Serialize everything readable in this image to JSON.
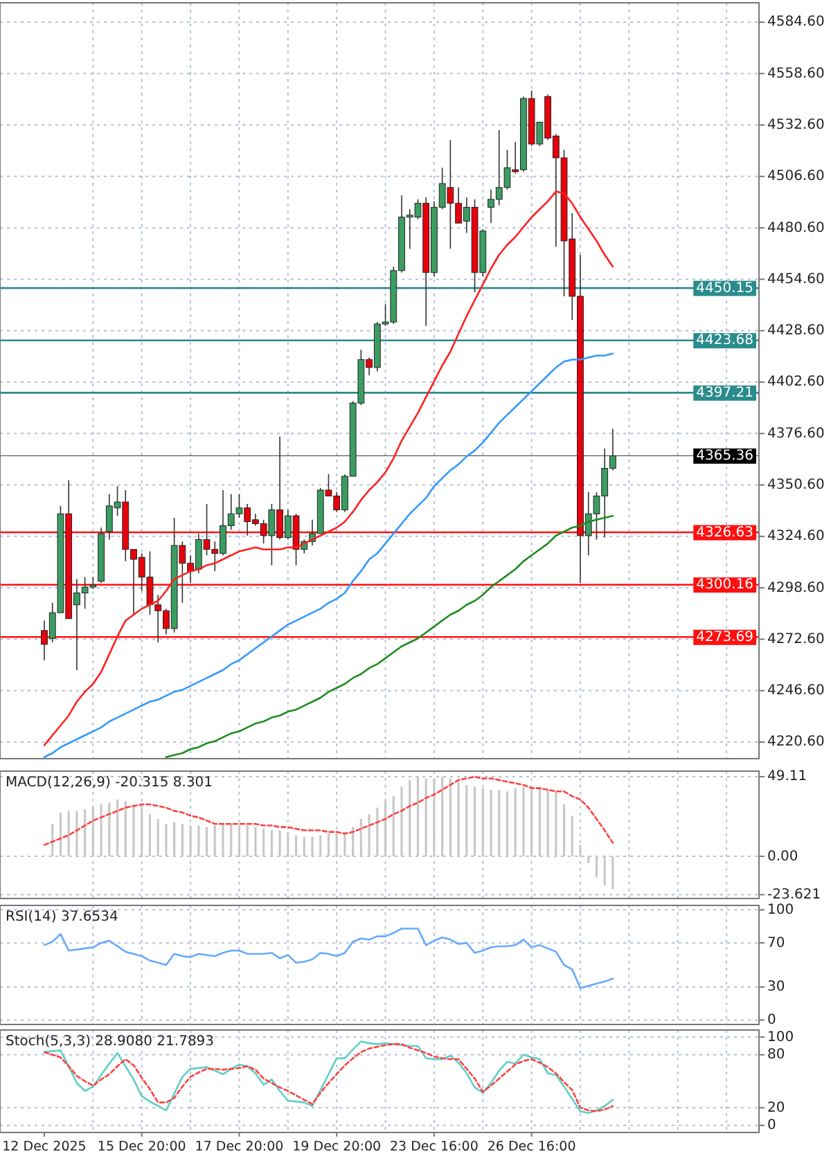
{
  "chart_data": [
    {
      "type": "candlestick",
      "categories": [
        null,
        null,
        null,
        null,
        null,
        null,
        null,
        null,
        null,
        null,
        null,
        null,
        null,
        null,
        null,
        null,
        null,
        null,
        null,
        null,
        null,
        null,
        null,
        null,
        null,
        null,
        null,
        null,
        null,
        null,
        null,
        null,
        null,
        null,
        null,
        null,
        null,
        null,
        null,
        null,
        null,
        null,
        null,
        null,
        null,
        null,
        null,
        null,
        null,
        null,
        null,
        null,
        null,
        null,
        null,
        null,
        null,
        null,
        null,
        null,
        null,
        null,
        null,
        null,
        null,
        null,
        null,
        null,
        null,
        null,
        null
      ],
      "ohlc": [
        [
          4277,
          4282,
          4262,
          4270
        ],
        [
          4273,
          4291,
          4271,
          4286
        ],
        [
          4286,
          4340,
          4286,
          4336
        ],
        [
          4336,
          4353,
          4283,
          4283
        ],
        [
          4290,
          4303,
          4257,
          4296
        ],
        [
          4296,
          4304,
          4288,
          4299
        ],
        [
          4299,
          4304,
          4298,
          4300
        ],
        [
          4302,
          4329,
          4301,
          4326
        ],
        [
          4327,
          4346,
          4323,
          4340
        ],
        [
          4339,
          4350,
          4335,
          4342
        ],
        [
          4342,
          4348,
          4312,
          4318
        ],
        [
          4318,
          4318,
          4285,
          4313
        ],
        [
          4314,
          4316,
          4297,
          4304
        ],
        [
          4304,
          4317,
          4285,
          4290
        ],
        [
          4290,
          4295,
          4271,
          4287
        ],
        [
          4287,
          4288,
          4275,
          4278
        ],
        [
          4278,
          4334,
          4276,
          4320
        ],
        [
          4320,
          4322,
          4291,
          4311
        ],
        [
          4311,
          4315,
          4301,
          4307
        ],
        [
          4308,
          4326,
          4306,
          4323
        ],
        [
          4323,
          4341,
          4315,
          4318
        ],
        [
          4318,
          4322,
          4307,
          4316
        ],
        [
          4316,
          4348,
          4315,
          4330
        ],
        [
          4330,
          4346,
          4328,
          4336
        ],
        [
          4336,
          4346,
          4334,
          4339
        ],
        [
          4339,
          4341,
          4325,
          4332
        ],
        [
          4333,
          4336,
          4330,
          4331
        ],
        [
          4331,
          4333,
          4321,
          4325
        ],
        [
          4325,
          4341,
          4310,
          4338
        ],
        [
          4338,
          4375,
          4323,
          4324
        ],
        [
          4324,
          4338,
          4323,
          4335
        ],
        [
          4335,
          4336,
          4310,
          4318
        ],
        [
          4318,
          4323,
          4316,
          4322
        ],
        [
          4322,
          4333,
          4320,
          4326
        ],
        [
          4326,
          4349,
          4326,
          4348
        ],
        [
          4348,
          4356,
          4345,
          4345
        ],
        [
          4345,
          4347,
          4337,
          4338
        ],
        [
          4338,
          4356,
          4337,
          4355
        ],
        [
          4355,
          4393,
          4355,
          4392
        ],
        [
          4392,
          4419,
          4391,
          4414
        ],
        [
          4414,
          4415,
          4406,
          4410
        ],
        [
          4410,
          4433,
          4408,
          4432
        ],
        [
          4432,
          4442,
          4431,
          4433
        ],
        [
          4433,
          4461,
          4432,
          4459
        ],
        [
          4459,
          4497,
          4458,
          4486
        ],
        [
          4486,
          4490,
          4470,
          4487
        ],
        [
          4486,
          4495,
          4485,
          4493
        ],
        [
          4493,
          4496,
          4431,
          4458
        ],
        [
          4458,
          4494,
          4456,
          4491
        ],
        [
          4491,
          4511,
          4490,
          4503
        ],
        [
          4501,
          4525,
          4470,
          4493
        ],
        [
          4493,
          4501,
          4483,
          4483
        ],
        [
          4484,
          4496,
          4478,
          4491
        ],
        [
          4491,
          4495,
          4448,
          4458
        ],
        [
          4458,
          4480,
          4456,
          4479
        ],
        [
          4491,
          4500,
          4483,
          4495
        ],
        [
          4495,
          4530,
          4492,
          4501
        ],
        [
          4501,
          4520,
          4500,
          4511
        ],
        [
          4510,
          4524,
          4508,
          4509
        ],
        [
          4510,
          4547,
          4509,
          4546
        ],
        [
          4546,
          4550,
          4522,
          4523
        ],
        [
          4523,
          4534,
          4522,
          4534
        ],
        [
          4547,
          4548,
          4525,
          4526
        ],
        [
          4527,
          4528,
          4471,
          4516
        ],
        [
          4516,
          4520,
          4446,
          4474
        ],
        [
          4475,
          4488,
          4434,
          4446
        ],
        [
          4446,
          4467,
          4301,
          4325
        ],
        [
          4325,
          4347,
          4315,
          4336
        ],
        [
          4336,
          4347,
          4323,
          4345
        ],
        [
          4345,
          4369,
          4324,
          4359
        ],
        [
          4359,
          4379,
          4358,
          4365.36
        ]
      ],
      "series": [
        {
          "type": "line",
          "color": "#ff2020",
          "values": [
            4219,
            4224,
            4229,
            4234,
            4241,
            4246,
            4250,
            4256,
            4265,
            4274,
            4282,
            4285,
            4288,
            4290,
            4292,
            4297,
            4303,
            4305,
            4307,
            4308,
            4310,
            4311,
            4313,
            4315,
            4317,
            4318,
            4319,
            4318,
            4318,
            4318,
            4319,
            4319,
            4321,
            4323,
            4325,
            4327,
            4329,
            4332,
            4337,
            4343,
            4348,
            4352,
            4357,
            4364,
            4373,
            4380,
            4387,
            4395,
            4403,
            4411,
            4418,
            4427,
            4436,
            4444,
            4452,
            4460,
            4467,
            4472,
            4476,
            4481,
            4486,
            4490,
            4494,
            4499,
            4498,
            4493,
            4486,
            4480,
            4474,
            4467,
            4461
          ]
        },
        {
          "type": "line",
          "color": "#3399ff",
          "values": [
            4213,
            4215,
            4218,
            4220,
            4222,
            4224,
            4226,
            4228,
            4231,
            4233,
            4235,
            4237,
            4239,
            4241,
            4242,
            4244,
            4246,
            4247,
            4249,
            4251,
            4253,
            4255,
            4257,
            4260,
            4262,
            4265,
            4268,
            4271,
            4274,
            4277,
            4280,
            4282,
            4284,
            4286,
            4288,
            4291,
            4293,
            4296,
            4302,
            4307,
            4313,
            4316,
            4321,
            4326,
            4331,
            4336,
            4340,
            4344,
            4350,
            4354,
            4358,
            4361,
            4365,
            4368,
            4372,
            4377,
            4382,
            4386,
            4390,
            4394,
            4398,
            4402,
            4406,
            4410,
            4413,
            4414,
            4414,
            4415,
            4416,
            4416,
            4417
          ]
        },
        {
          "type": "line",
          "color": "#1e8c1e",
          "values": [
            null,
            null,
            null,
            null,
            null,
            null,
            null,
            null,
            null,
            null,
            null,
            null,
            null,
            null,
            null,
            4213,
            4214,
            4215,
            4217,
            4218,
            4220,
            4221,
            4223,
            4225,
            4226,
            4228,
            4230,
            4231,
            4233,
            4234,
            4236,
            4237,
            4239,
            4241,
            4243,
            4246,
            4248,
            4250,
            4253,
            4255,
            4258,
            4260,
            4263,
            4266,
            4269,
            4271,
            4273,
            4276,
            4279,
            4282,
            4285,
            4287,
            4290,
            4292,
            4295,
            4299,
            4302,
            4305,
            4308,
            4312,
            4315,
            4318,
            4321,
            4325,
            4327,
            4329,
            4330,
            4332,
            4333,
            4334,
            4335
          ]
        }
      ],
      "ref_lines": [
        {
          "axis": "y",
          "value": 4450.15,
          "label": "4450.15",
          "color": "#2a8c8c"
        },
        {
          "axis": "y",
          "value": 4423.68,
          "label": "4423.68",
          "color": "#2a8c8c"
        },
        {
          "axis": "y",
          "value": 4397.21,
          "label": "4397.21",
          "color": "#2a8c8c"
        },
        {
          "axis": "y",
          "value": 4365.36,
          "label": "4365.36",
          "color": "#000000"
        },
        {
          "axis": "y",
          "value": 4326.63,
          "label": "4326.63",
          "color": "#ff1010"
        },
        {
          "axis": "y",
          "value": 4300.16,
          "label": "4300.16",
          "color": "#ff1010"
        },
        {
          "axis": "y",
          "value": 4273.69,
          "label": "4273.69",
          "color": "#ff1010"
        }
      ],
      "ylim": [
        4212.2,
        4594.4
      ],
      "yticks": [
        {
          "value": 4220.6,
          "label": "4220.60"
        },
        {
          "value": 4246.6,
          "label": "4246.60"
        },
        {
          "value": 4272.6,
          "label": "4272.60"
        },
        {
          "value": 4298.6,
          "label": "4298.60"
        },
        {
          "value": 4324.6,
          "label": "4324.60"
        },
        {
          "value": 4350.6,
          "label": "4350.60"
        },
        {
          "value": 4376.6,
          "label": "4376.60"
        },
        {
          "value": 4402.6,
          "label": "4402.60"
        },
        {
          "value": 4428.6,
          "label": "4428.60"
        },
        {
          "value": 4454.6,
          "label": "4454.60"
        },
        {
          "value": 4480.6,
          "label": "4480.60"
        },
        {
          "value": 4506.6,
          "label": "4506.60"
        },
        {
          "value": 4532.6,
          "label": "4532.60"
        },
        {
          "value": 4558.6,
          "label": "4558.60"
        },
        {
          "value": 4584.6,
          "label": "4584.60"
        }
      ],
      "grid": true,
      "tick_labels": "y"
    },
    {
      "type": "bar",
      "title": "MACD(12,26,9) -20.315 8.301",
      "categories": [
        null,
        null,
        null,
        null,
        null,
        null,
        null,
        null,
        null,
        null,
        null,
        null,
        null,
        null,
        null,
        null,
        null,
        null,
        null,
        null,
        null,
        null,
        null,
        null,
        null,
        null,
        null,
        null,
        null,
        null,
        null,
        null,
        null,
        null,
        null,
        null,
        null,
        null,
        null,
        null,
        null,
        null,
        null,
        null,
        null,
        null,
        null,
        null,
        null,
        null,
        null,
        null,
        null,
        null,
        null,
        null,
        null,
        null,
        null,
        null,
        null,
        null,
        null,
        null,
        null,
        null,
        null,
        null,
        null,
        null,
        null
      ],
      "series": [
        {
          "type": "bar",
          "color": "#c8c8c8",
          "values": [
            null,
            20,
            27,
            28,
            28,
            29,
            31,
            32,
            33,
            35,
            34,
            32,
            32,
            26,
            23,
            20,
            21,
            20,
            19,
            19,
            18,
            19,
            20,
            20,
            19,
            19,
            18,
            17,
            16,
            16,
            15,
            13,
            12,
            12,
            13,
            14,
            14,
            15,
            18,
            23,
            26,
            30,
            34,
            37,
            43,
            47,
            49.11,
            48,
            48,
            49,
            48,
            46,
            44,
            43,
            42,
            41,
            41,
            40,
            42,
            43,
            42,
            42,
            41,
            40,
            32,
            25,
            7,
            -4,
            -13,
            -18,
            -20.315
          ]
        },
        {
          "type": "line",
          "color": "#ff4040",
          "line_style": "dashed",
          "values": [
            7,
            9,
            11,
            13,
            16,
            19,
            22,
            24,
            26,
            28,
            30,
            31,
            32,
            32,
            31,
            30,
            28,
            27,
            25,
            24,
            22,
            20,
            20,
            20,
            20,
            20,
            20,
            19,
            19,
            18,
            18,
            17,
            16,
            16,
            16,
            15,
            15,
            14,
            15,
            17,
            19,
            21,
            23,
            26,
            28,
            31,
            33,
            36,
            38,
            41,
            44,
            47,
            48,
            49,
            48,
            48,
            47,
            46,
            45,
            44,
            42,
            42,
            41,
            40,
            40,
            37,
            35,
            30,
            23,
            16,
            8.301
          ]
        }
      ],
      "ylim": [
        -26,
        52.5
      ],
      "yticks": [
        -23.621,
        {
          "value": 0,
          "label": "0.00"
        },
        49.11
      ],
      "grid": true,
      "tick_labels": "y"
    },
    {
      "type": "line",
      "title": "RSI(14) 37.6534",
      "categories": [
        null,
        null,
        null,
        null,
        null,
        null,
        null,
        null,
        null,
        null,
        null,
        null,
        null,
        null,
        null,
        null,
        null,
        null,
        null,
        null,
        null,
        null,
        null,
        null,
        null,
        null,
        null,
        null,
        null,
        null,
        null,
        null,
        null,
        null,
        null,
        null,
        null,
        null,
        null,
        null,
        null,
        null,
        null,
        null,
        null,
        null,
        null,
        null,
        null,
        null,
        null,
        null,
        null,
        null,
        null,
        null,
        null,
        null,
        null,
        null,
        null,
        null,
        null,
        null,
        null,
        null,
        null,
        null,
        null,
        null,
        null
      ],
      "series": [
        {
          "type": "line",
          "color": "#66aaff",
          "values": [
            68,
            71,
            78,
            63,
            64,
            65,
            66,
            70,
            72,
            67,
            62,
            60,
            58,
            54,
            52,
            50,
            60,
            58,
            57,
            60,
            59,
            58,
            61,
            63,
            63,
            60,
            60,
            60,
            61,
            56,
            59,
            52,
            53,
            55,
            61,
            60,
            58,
            61,
            71,
            74,
            73,
            76,
            76,
            79,
            83,
            83,
            83,
            68,
            72,
            75,
            73,
            69,
            70,
            61,
            63,
            66,
            67,
            67,
            68,
            73,
            66,
            68,
            65,
            62,
            50,
            46,
            29,
            31,
            33,
            35,
            37.6534
          ]
        }
      ],
      "ylim": [
        -4,
        104
      ],
      "yticks": [
        0,
        30,
        70,
        100
      ],
      "grid": true,
      "tick_labels": "y"
    },
    {
      "type": "line",
      "title": "Stoch(5,3,3) 28.9080 21.7893",
      "categories": [
        "12 Dec 2025",
        null,
        null,
        null,
        null,
        null,
        null,
        null,
        null,
        null,
        null,
        null,
        "15 Dec 20:00",
        null,
        null,
        null,
        null,
        null,
        null,
        null,
        null,
        null,
        null,
        null,
        "17 Dec 20:00",
        null,
        null,
        null,
        null,
        null,
        null,
        null,
        null,
        null,
        null,
        null,
        "19 Dec 20:00",
        null,
        null,
        null,
        null,
        null,
        null,
        null,
        null,
        null,
        null,
        null,
        "23 Dec 16:00",
        null,
        null,
        null,
        null,
        null,
        null,
        null,
        null,
        null,
        null,
        null,
        "26 Dec 16:00",
        null,
        null,
        null,
        null,
        null,
        null,
        null,
        null,
        null,
        null
      ],
      "series": [
        {
          "type": "line",
          "color": "#5fcfc8",
          "values": [
            83,
            84,
            85,
            67,
            48,
            39,
            44,
            57,
            70,
            82,
            67,
            52,
            33,
            27,
            22,
            17,
            36,
            55,
            64,
            65,
            66,
            62,
            58,
            64,
            69,
            67,
            59,
            46,
            52,
            39,
            28,
            27,
            26,
            22,
            40,
            58,
            76,
            76,
            86,
            95,
            93,
            92,
            93,
            92,
            91,
            90,
            90,
            76,
            75,
            75,
            79,
            71,
            59,
            43,
            37,
            48,
            62,
            72,
            70,
            80,
            77,
            75,
            59,
            57,
            44,
            30,
            16,
            14,
            17,
            22,
            28.908
          ]
        },
        {
          "type": "line",
          "color": "#ff4040",
          "line_style": "dashed",
          "values": [
            83,
            80,
            77,
            67,
            56,
            50,
            45,
            52,
            58,
            67,
            75,
            68,
            54,
            41,
            26,
            26,
            31,
            44,
            55,
            60,
            64,
            64,
            63,
            64,
            65,
            67,
            63,
            53,
            48,
            43,
            39,
            34,
            29,
            24,
            37,
            48,
            58,
            68,
            76,
            83,
            87,
            89,
            91,
            92,
            92,
            88,
            85,
            82,
            78,
            76,
            75,
            75,
            64,
            53,
            38,
            45,
            53,
            61,
            69,
            73,
            75,
            71,
            66,
            59,
            49,
            40,
            20,
            17,
            16,
            18,
            21.7893
          ]
        }
      ],
      "ylim": [
        -8,
        108
      ],
      "yticks": [
        0,
        20,
        80,
        100
      ],
      "grid": true
    }
  ]
}
